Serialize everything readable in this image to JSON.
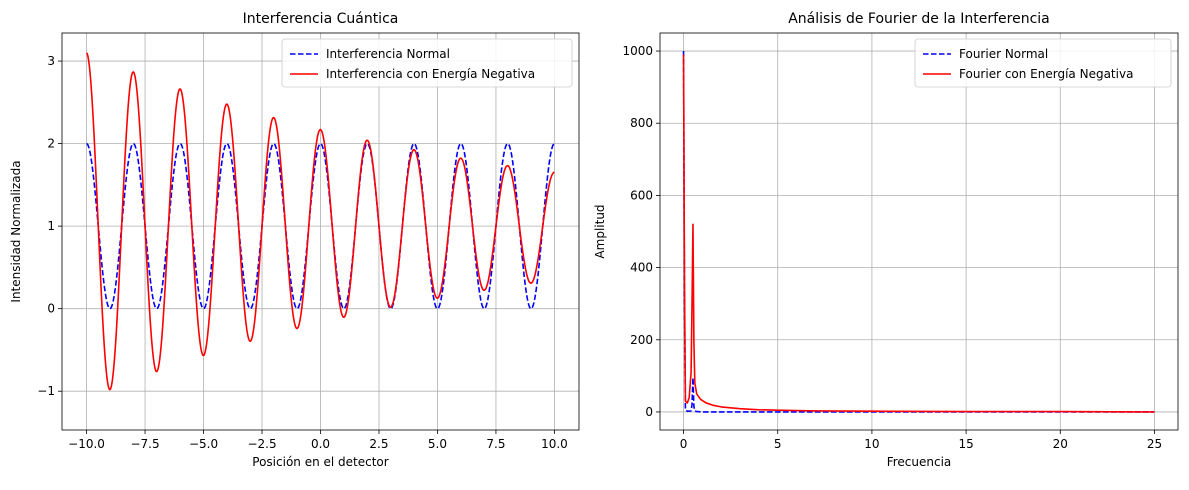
{
  "chart_data": [
    {
      "type": "line",
      "title": "Interferencia Cuántica",
      "xlabel": "Posición en el detector",
      "ylabel": "Intensidad Normalizada",
      "xlim": [
        -11.05,
        11.05
      ],
      "ylim": [
        -1.47,
        3.34
      ],
      "xticks": [
        -10,
        -7.5,
        -5,
        -2.5,
        0,
        2.5,
        5,
        7.5,
        10
      ],
      "xtick_labels": [
        "−10.0",
        "−7.5",
        "−5.0",
        "−2.5",
        "0.0",
        "2.5",
        "5.0",
        "7.5",
        "10.0"
      ],
      "yticks": [
        -1,
        0,
        1,
        2,
        3
      ],
      "ytick_labels": [
        "−1",
        "0",
        "1",
        "2",
        "3"
      ],
      "grid": true,
      "legend_position": "top-right",
      "series": [
        {
          "name": "Interferencia Normal",
          "color": "#0000ff",
          "style": "dashed",
          "x_range": [
            -10,
            10
          ],
          "formula": "1 + cos(pi * x)"
        },
        {
          "name": "Interferencia con Energía Negativa",
          "color": "#ff0000",
          "style": "solid",
          "x_range": [
            -10,
            10
          ],
          "formula": "1 + 2.1*exp(-0.0585*(x+10))*cos(pi*(x+10))"
        }
      ]
    },
    {
      "type": "line",
      "title": "Análisis de Fourier de la Interferencia",
      "xlabel": "Frecuencia",
      "ylabel": "Amplitud",
      "xlim": [
        -1.25,
        26.25
      ],
      "ylim": [
        -50,
        1050
      ],
      "xticks": [
        0,
        5,
        10,
        15,
        20,
        25
      ],
      "xtick_labels": [
        "0",
        "5",
        "10",
        "15",
        "20",
        "25"
      ],
      "yticks": [
        0,
        200,
        400,
        600,
        800,
        1000
      ],
      "ytick_labels": [
        "0",
        "200",
        "400",
        "600",
        "800",
        "1000"
      ],
      "grid": true,
      "legend_position": "top-right",
      "series": [
        {
          "name": "Fourier Normal",
          "color": "#0000ff",
          "style": "dashed",
          "x": [
            0,
            0.05,
            0.1,
            0.2,
            0.3,
            0.4,
            0.45,
            0.5,
            0.55,
            0.6,
            0.7,
            1,
            2,
            5,
            10,
            15,
            20,
            25
          ],
          "y": [
            1000,
            300,
            5,
            2,
            2,
            3,
            20,
            95,
            15,
            3,
            1,
            0,
            0,
            0,
            0,
            0,
            0,
            0
          ]
        },
        {
          "name": "Fourier con Energía Negativa",
          "color": "#ff0000",
          "style": "solid",
          "x": [
            0,
            0.05,
            0.1,
            0.2,
            0.3,
            0.4,
            0.45,
            0.5,
            0.55,
            0.6,
            0.7,
            0.9,
            1.2,
            1.6,
            2.0,
            3,
            4,
            5,
            7,
            10,
            15,
            20,
            25
          ],
          "y": [
            990,
            350,
            30,
            25,
            40,
            110,
            300,
            520,
            190,
            80,
            50,
            35,
            25,
            18,
            14,
            9,
            6,
            5,
            3,
            2,
            1,
            1,
            0
          ]
        }
      ]
    }
  ]
}
